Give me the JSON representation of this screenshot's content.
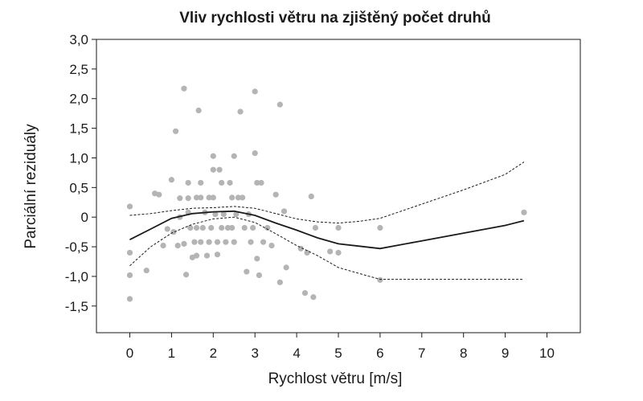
{
  "chart_data": {
    "type": "scatter",
    "title": "Vliv rychlosti větru na zjištěný počet druhů",
    "xlabel": "Rychlost větru [m/s]",
    "ylabel": "Parciální reziduály",
    "xlim": [
      -0.8,
      10.8
    ],
    "ylim": [
      -1.95,
      3.0
    ],
    "x_ticks": [
      0,
      1,
      2,
      3,
      4,
      5,
      6,
      7,
      8,
      9,
      10
    ],
    "x_tick_labels": [
      "0",
      "1",
      "2",
      "3",
      "4",
      "5",
      "6",
      "7",
      "8",
      "9",
      "10"
    ],
    "y_ticks": [
      3.0,
      2.5,
      2.0,
      1.5,
      1.0,
      0.5,
      0,
      -0.5,
      -1.0,
      -1.5
    ],
    "y_tick_labels": [
      "3,0",
      "2,5",
      "2,0",
      "1,5",
      "1,0",
      "0,5",
      "0",
      "-0,5",
      "-1,0",
      "-1,5"
    ],
    "grid": false,
    "colors": {
      "points": "#b4b4b4",
      "fit": "#1a1a1a",
      "band": "#1a1a1a",
      "frame": "#1a1a1a"
    },
    "series": [
      {
        "kind": "points",
        "points": [
          [
            0.0,
            0.18
          ],
          [
            0.0,
            -0.6
          ],
          [
            0.0,
            -0.98
          ],
          [
            0.0,
            -1.38
          ],
          [
            0.4,
            -0.9
          ],
          [
            0.6,
            0.4
          ],
          [
            0.7,
            0.38
          ],
          [
            0.9,
            -0.2
          ],
          [
            0.8,
            -0.48
          ],
          [
            1.0,
            0.63
          ],
          [
            1.05,
            -0.25
          ],
          [
            1.1,
            1.45
          ],
          [
            1.15,
            -0.48
          ],
          [
            1.2,
            0.32
          ],
          [
            1.2,
            0.0
          ],
          [
            1.3,
            2.17
          ],
          [
            1.3,
            -0.45
          ],
          [
            1.35,
            -0.97
          ],
          [
            1.4,
            0.58
          ],
          [
            1.4,
            0.32
          ],
          [
            1.4,
            0.08
          ],
          [
            1.45,
            -0.18
          ],
          [
            1.5,
            -0.68
          ],
          [
            1.55,
            -0.42
          ],
          [
            1.6,
            0.33
          ],
          [
            1.6,
            -0.18
          ],
          [
            1.6,
            -0.65
          ],
          [
            1.65,
            1.8
          ],
          [
            1.7,
            0.58
          ],
          [
            1.7,
            0.33
          ],
          [
            1.7,
            -0.42
          ],
          [
            1.75,
            -0.18
          ],
          [
            1.8,
            0.08
          ],
          [
            1.85,
            -0.65
          ],
          [
            1.9,
            0.33
          ],
          [
            1.9,
            -0.42
          ],
          [
            1.95,
            -0.18
          ],
          [
            2.0,
            1.03
          ],
          [
            2.0,
            0.8
          ],
          [
            2.0,
            0.33
          ],
          [
            2.05,
            0.05
          ],
          [
            2.1,
            -0.42
          ],
          [
            2.1,
            -0.63
          ],
          [
            2.15,
            0.8
          ],
          [
            2.2,
            -0.18
          ],
          [
            2.2,
            0.58
          ],
          [
            2.25,
            0.05
          ],
          [
            2.3,
            -0.42
          ],
          [
            2.35,
            -0.18
          ],
          [
            2.4,
            0.58
          ],
          [
            2.45,
            0.33
          ],
          [
            2.45,
            -0.18
          ],
          [
            2.5,
            1.03
          ],
          [
            2.5,
            -0.42
          ],
          [
            2.55,
            0.05
          ],
          [
            2.6,
            0.33
          ],
          [
            2.65,
            1.78
          ],
          [
            2.7,
            0.33
          ],
          [
            2.75,
            -0.18
          ],
          [
            2.8,
            -0.92
          ],
          [
            2.85,
            0.05
          ],
          [
            2.9,
            -0.42
          ],
          [
            2.95,
            -0.18
          ],
          [
            3.0,
            2.12
          ],
          [
            3.0,
            1.08
          ],
          [
            3.05,
            0.58
          ],
          [
            3.05,
            -0.7
          ],
          [
            3.1,
            -0.98
          ],
          [
            3.15,
            0.58
          ],
          [
            3.2,
            -0.42
          ],
          [
            3.3,
            -0.18
          ],
          [
            3.4,
            -0.48
          ],
          [
            3.5,
            0.38
          ],
          [
            3.6,
            1.9
          ],
          [
            3.6,
            -1.1
          ],
          [
            3.7,
            0.1
          ],
          [
            3.75,
            -0.85
          ],
          [
            4.1,
            -0.53
          ],
          [
            4.2,
            -1.28
          ],
          [
            4.25,
            -0.6
          ],
          [
            4.35,
            0.35
          ],
          [
            4.4,
            -1.35
          ],
          [
            4.45,
            -0.18
          ],
          [
            4.8,
            -0.58
          ],
          [
            5.0,
            -0.18
          ],
          [
            5.0,
            -0.6
          ],
          [
            6.0,
            -0.18
          ],
          [
            6.0,
            -1.06
          ],
          [
            9.45,
            0.08
          ]
        ]
      },
      {
        "kind": "fit",
        "points": [
          [
            0.0,
            -0.38
          ],
          [
            0.5,
            -0.2
          ],
          [
            1.0,
            -0.02
          ],
          [
            1.5,
            0.06
          ],
          [
            2.0,
            0.09
          ],
          [
            2.5,
            0.1
          ],
          [
            3.0,
            0.03
          ],
          [
            3.5,
            -0.1
          ],
          [
            4.0,
            -0.22
          ],
          [
            4.5,
            -0.35
          ],
          [
            5.0,
            -0.45
          ],
          [
            5.5,
            -0.49
          ],
          [
            6.0,
            -0.53
          ],
          [
            7.0,
            -0.4
          ],
          [
            8.0,
            -0.27
          ],
          [
            9.0,
            -0.14
          ],
          [
            9.45,
            -0.06
          ]
        ]
      },
      {
        "kind": "band-upper",
        "points": [
          [
            0.0,
            0.03
          ],
          [
            0.5,
            0.06
          ],
          [
            1.0,
            0.11
          ],
          [
            1.5,
            0.15
          ],
          [
            2.0,
            0.16
          ],
          [
            2.5,
            0.18
          ],
          [
            3.0,
            0.15
          ],
          [
            3.5,
            0.06
          ],
          [
            4.0,
            -0.03
          ],
          [
            4.5,
            -0.08
          ],
          [
            5.0,
            -0.1
          ],
          [
            5.5,
            -0.07
          ],
          [
            6.0,
            -0.02
          ],
          [
            7.0,
            0.22
          ],
          [
            8.0,
            0.46
          ],
          [
            9.0,
            0.72
          ],
          [
            9.45,
            0.93
          ]
        ]
      },
      {
        "kind": "band-lower",
        "points": [
          [
            0.0,
            -0.82
          ],
          [
            0.5,
            -0.5
          ],
          [
            1.0,
            -0.27
          ],
          [
            1.5,
            -0.12
          ],
          [
            2.0,
            -0.03
          ],
          [
            2.5,
            0.0
          ],
          [
            3.0,
            -0.09
          ],
          [
            3.5,
            -0.28
          ],
          [
            4.0,
            -0.48
          ],
          [
            4.5,
            -0.65
          ],
          [
            5.0,
            -0.85
          ],
          [
            5.5,
            -0.95
          ],
          [
            6.0,
            -1.05
          ],
          [
            7.0,
            -1.05
          ],
          [
            8.0,
            -1.05
          ],
          [
            9.0,
            -1.05
          ],
          [
            9.45,
            -1.05
          ]
        ]
      }
    ]
  }
}
